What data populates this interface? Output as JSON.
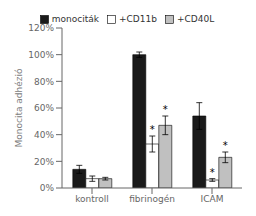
{
  "chart_data": {
    "type": "bar",
    "categories": [
      "kontroll",
      "fibrinogén",
      "ICAM"
    ],
    "series": [
      {
        "name": "monociták",
        "color": "#1a1a1a",
        "values": [
          14,
          100,
          54
        ],
        "errors": [
          3,
          2,
          10
        ]
      },
      {
        "name": "+CD11b",
        "color": "#ffffff",
        "values": [
          7,
          33,
          6
        ],
        "errors": [
          2,
          6,
          1
        ]
      },
      {
        "name": "+CD40L",
        "color": "#c0c0c0",
        "values": [
          7,
          47,
          23
        ],
        "errors": [
          1,
          7,
          4
        ]
      }
    ],
    "ylabel": "Monocita adhézió",
    "ylim": [
      0,
      120
    ],
    "yticks": [
      {
        "value": 0,
        "label": "0%"
      },
      {
        "value": 20,
        "label": "20%"
      },
      {
        "value": 40,
        "label": "40%"
      },
      {
        "value": 60,
        "label": "60%"
      },
      {
        "value": 80,
        "label": "80%"
      },
      {
        "value": 100,
        "label": "100%"
      },
      {
        "value": 120,
        "label": "120%"
      }
    ],
    "annotations": [
      {
        "text": "*",
        "category": "fibrinogén",
        "series": "+CD11b"
      },
      {
        "text": "*",
        "category": "fibrinogén",
        "series": "+CD40L"
      },
      {
        "text": "*",
        "category": "ICAM",
        "series": "+CD11b"
      },
      {
        "text": "*",
        "category": "ICAM",
        "series": "+CD40L"
      }
    ],
    "grid": false,
    "legend": "top"
  }
}
